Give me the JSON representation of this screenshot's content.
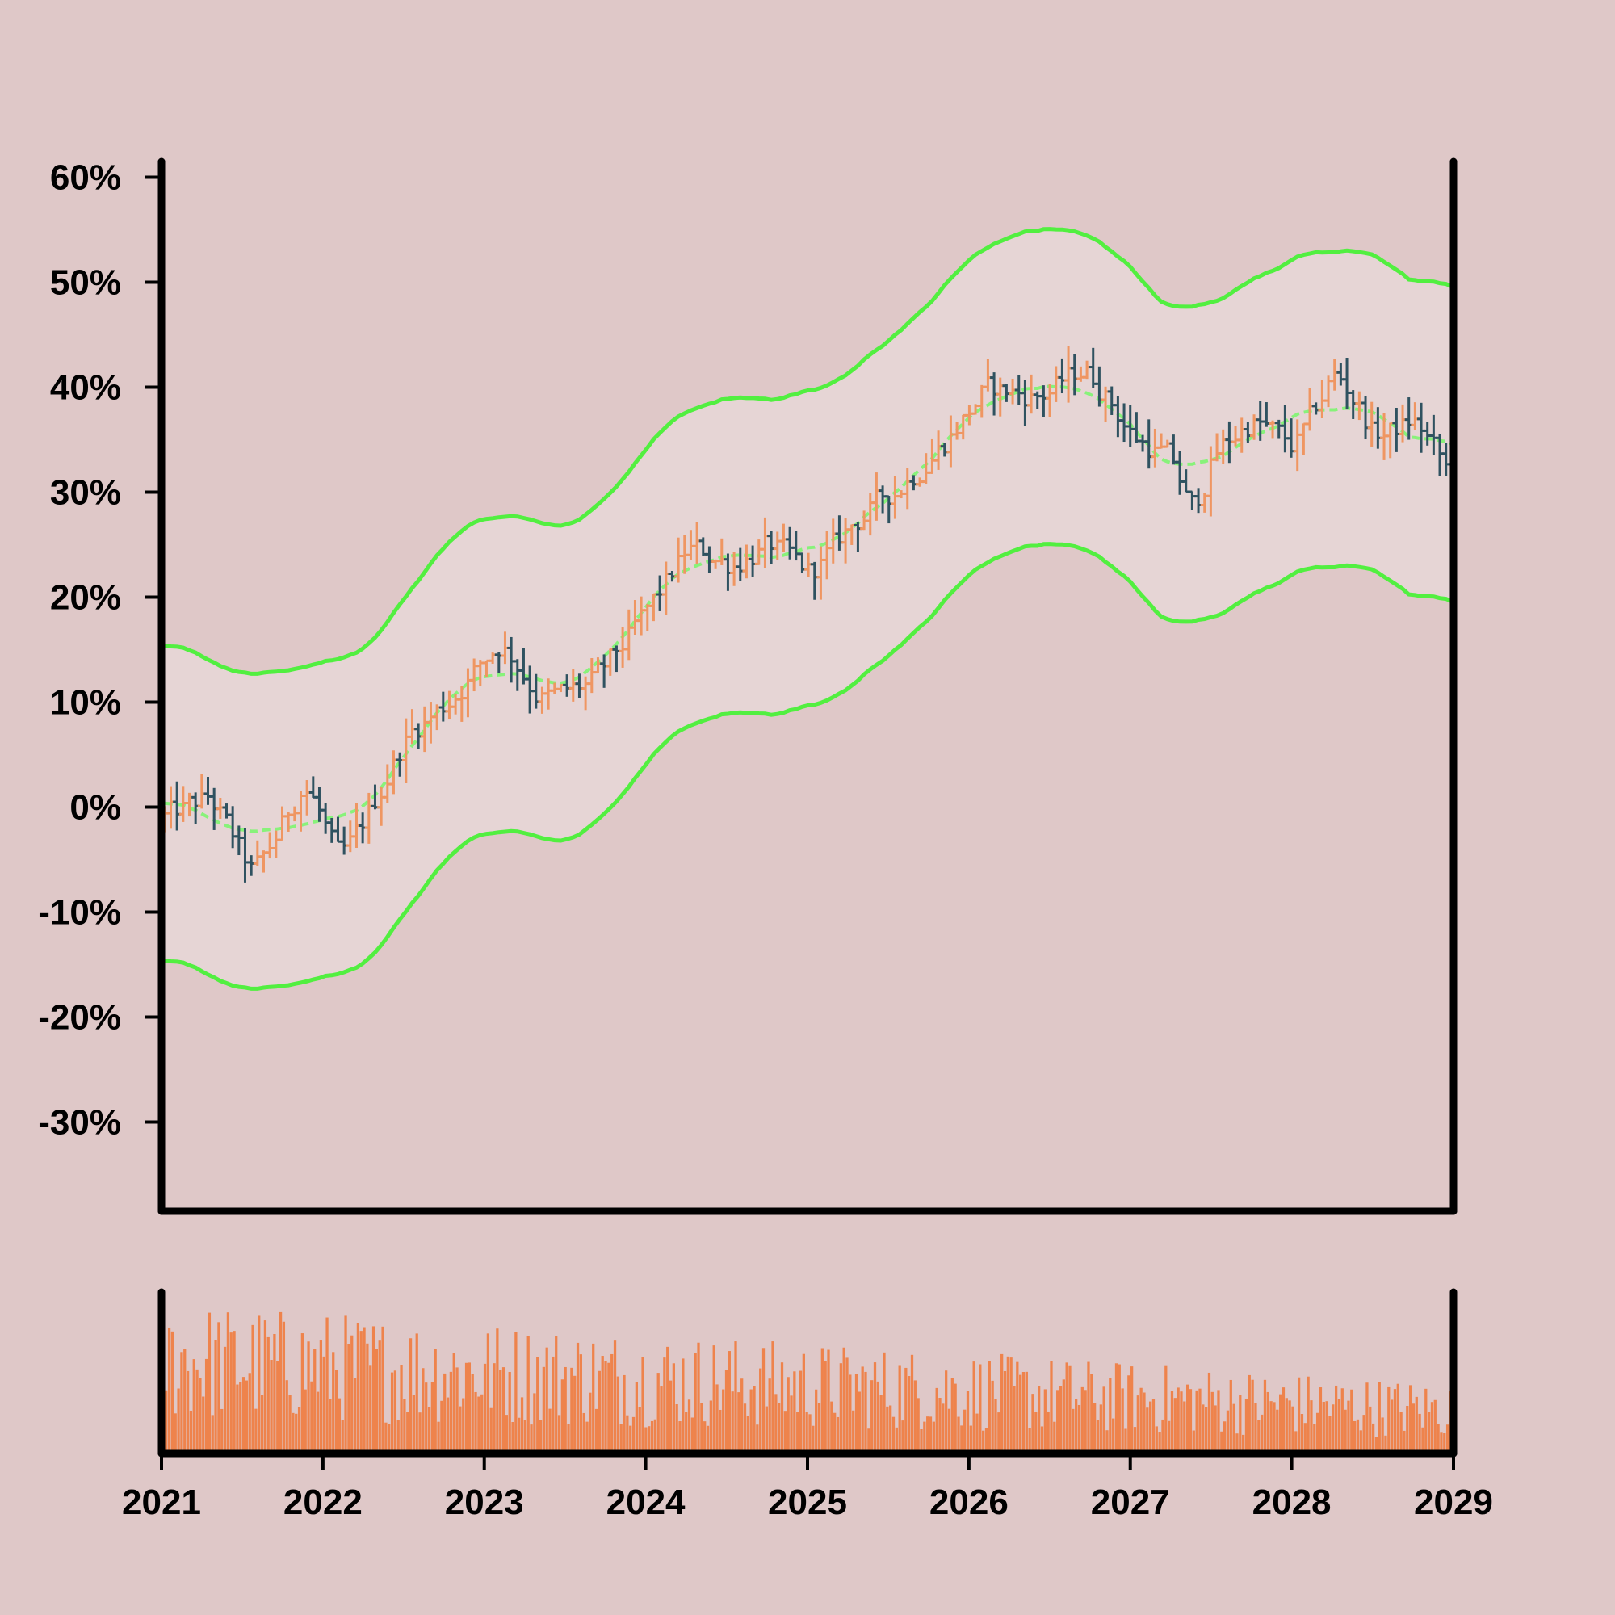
{
  "chart_data": {
    "type": "ohlc",
    "x_range": [
      "2021-01-01",
      "2029-01-01"
    ],
    "y_range": [
      -38.5,
      61.5
    ],
    "y_ticks": [
      "-30%",
      "-20%",
      "-10%",
      "0%",
      "10%",
      "20%",
      "30%",
      "40%",
      "50%",
      "60%"
    ],
    "y_tick_values": [
      -30,
      -20,
      -10,
      0,
      10,
      20,
      30,
      40,
      50,
      60
    ],
    "x_ticks": [
      "2021",
      "2022",
      "2023",
      "2024",
      "2025",
      "2026",
      "2027",
      "2028",
      "2029"
    ],
    "price_anchors": {
      "dates": [
        "2021-01-01",
        "2021-04-15",
        "2021-07-20",
        "2021-11-15",
        "2022-02-01",
        "2022-07-01",
        "2022-10-01",
        "2023-02-01",
        "2023-05-01",
        "2023-09-01",
        "2024-01-01",
        "2024-04-01",
        "2024-07-01",
        "2024-10-01",
        "2025-01-01",
        "2025-04-01",
        "2025-08-01",
        "2025-11-01",
        "2026-02-01",
        "2026-06-01",
        "2026-09-15",
        "2027-01-01",
        "2027-04-01",
        "2027-05-15",
        "2027-07-01",
        "2027-10-01",
        "2028-01-01",
        "2028-04-01",
        "2028-07-01",
        "2028-10-01",
        "2029-01-01"
      ],
      "values": [
        -1,
        1,
        -7,
        3,
        -6,
        7,
        10,
        16,
        10,
        12,
        19,
        25,
        23,
        25,
        22,
        27,
        31,
        35,
        40,
        39,
        42,
        35,
        33,
        27,
        34,
        37,
        34,
        42,
        35,
        37,
        30
      ]
    },
    "bar_interval_days": 14,
    "moving_average": {
      "type": "dashed",
      "color": "#88f27a"
    },
    "envelope_offset_pct": 15,
    "envelope": {
      "color": "#52ef40",
      "fill": "#e6d5d5"
    },
    "colors": {
      "up": "#ef9662",
      "down": "#2f5260",
      "volume": "#ee834c",
      "axis": "#000000",
      "background": "#dfc8c8"
    },
    "volume": {
      "trend_start": 0.75,
      "trend_end": 0.35,
      "note_panel": "lower"
    }
  }
}
